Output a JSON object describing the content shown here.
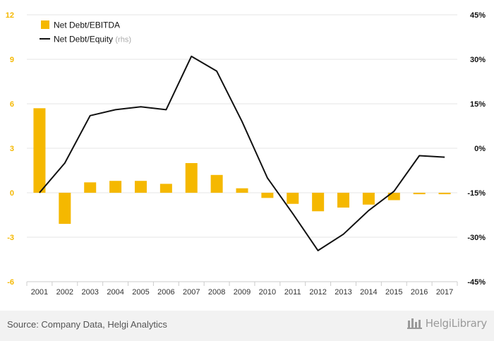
{
  "chart_data": {
    "type": "bar",
    "categories": [
      "2001",
      "2002",
      "2003",
      "2004",
      "2005",
      "2006",
      "2007",
      "2008",
      "2009",
      "2010",
      "2011",
      "2012",
      "2013",
      "2014",
      "2015",
      "2016",
      "2017"
    ],
    "series": [
      {
        "name": "Net Debt/EBITDA",
        "type": "bar",
        "axis": "left",
        "color": "#f5b800",
        "values": [
          5.7,
          -2.1,
          0.7,
          0.8,
          0.8,
          0.6,
          2.0,
          1.2,
          0.3,
          -0.35,
          -0.75,
          -1.25,
          -1.0,
          -0.8,
          -0.5,
          -0.1,
          -0.1
        ]
      },
      {
        "name": "Net Debt/Equity",
        "name_suffix": "(rhs)",
        "type": "line",
        "axis": "right",
        "color": "#111111",
        "values": [
          -15,
          -5,
          11,
          13,
          14,
          13,
          31,
          26,
          9,
          -10,
          -22,
          -34.5,
          -29,
          -21,
          -14.5,
          -2.5,
          -3
        ]
      }
    ],
    "left_axis": {
      "ticks": [
        12,
        9,
        6,
        3,
        0,
        -3,
        -6
      ],
      "tick_labels": [
        "12",
        "9",
        "6",
        "3",
        "0",
        "-3",
        "-6"
      ],
      "range": [
        -6,
        12
      ],
      "label_color": "#f5b800"
    },
    "right_axis": {
      "ticks": [
        45,
        30,
        15,
        0,
        -15,
        -30,
        -45
      ],
      "tick_labels": [
        "45%",
        "30%",
        "15%",
        "0%",
        "-15%",
        "-30%",
        "-45%"
      ],
      "range": [
        -45,
        45
      ],
      "label_color": "#111111"
    },
    "grid": true,
    "legend_position": "top-left"
  },
  "footer": {
    "source": "Source: Company Data, Helgi Analytics",
    "logo_text": "HelgiLibrary"
  },
  "colors": {
    "grid": "#e6e6e6",
    "axis_line": "#cccccc",
    "category_label": "#333333",
    "footer_bg": "#f2f2f2",
    "rhs_note": "#aaaaaa"
  }
}
